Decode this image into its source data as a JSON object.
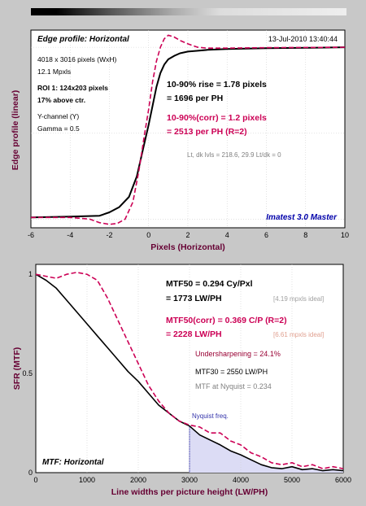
{
  "colors": {
    "measured": "#000000",
    "corrected": "#cc0055",
    "ideal_note": "#a0a0a0",
    "nyquist_fill": "#dcdcf5",
    "ylabel": "#660033",
    "xlabel": "#660033",
    "brand": "#0000aa"
  },
  "top_chart": {
    "title": "Edge profile: Horizontal",
    "timestamp": "13-Jul-2010 13:40:44",
    "info": [
      "4018 x 3016 pixels (WxH)",
      "12.1 Mpxls"
    ],
    "roi": [
      "ROI 1:  124x203 pixels",
      "17% above ctr."
    ],
    "channel": [
      "Y-channel  (Y)",
      "Gamma = 0.5"
    ],
    "rise": [
      "10-90% rise = 1.78 pixels",
      "= 1696 per PH"
    ],
    "rise_corr": [
      "10-90%(corr) = 1.2 pixels",
      "= 2513 per PH   (R=2)"
    ],
    "levels": "Lt, dk lvls = 218.6, 29.9   Lt/dk = 0",
    "brand": "Imatest 3.0 Master",
    "ylabel": "Edge profile (linear)",
    "xlabel": "Pixels (Horizontal)"
  },
  "bottom_chart": {
    "mtf50": [
      "MTF50 = 0.294 Cy/Pxl",
      "= 1773 LW/PH"
    ],
    "mtf50_ideal": "[4.19 mpxls ideal]",
    "mtf50_corr": [
      "MTF50(corr) = 0.369 C/P  (R=2)",
      "= 2228 LW/PH"
    ],
    "mtf50_corr_ideal": "[6.61 mpxls ideal]",
    "undersharpening": "Undersharpening = 24.1%",
    "mtf30": "MTF30 = 2550 LW/PH",
    "mtf_nyquist": "MTF at Nyquist = 0.234",
    "nyquist_label": "Nyquist freq.",
    "title": "MTF: Horizontal",
    "ylabel": "SFR (MTF)",
    "xlabel": "Line widths per picture height (LW/PH)"
  },
  "chart_data": [
    {
      "type": "line",
      "title": "Edge profile: Horizontal",
      "xlabel": "Pixels (Horizontal)",
      "ylabel": "Edge profile (linear)",
      "xlim": [
        -6,
        10
      ],
      "ylim": [
        -0.05,
        1.1
      ],
      "xticks": [
        -6,
        -4,
        -2,
        0,
        2,
        4,
        6,
        8,
        10
      ],
      "grid": true,
      "series": [
        {
          "style": "solid",
          "x": [
            -6,
            -4,
            -2.5,
            -2,
            -1.5,
            -1,
            -0.6,
            -0.3,
            0,
            0.2,
            0.4,
            0.6,
            0.8,
            1,
            1.3,
            1.6,
            2,
            2.5,
            3,
            4,
            6,
            8,
            10
          ],
          "y": [
            0.01,
            0.015,
            0.02,
            0.04,
            0.07,
            0.13,
            0.25,
            0.4,
            0.55,
            0.66,
            0.77,
            0.85,
            0.9,
            0.93,
            0.95,
            0.965,
            0.975,
            0.98,
            0.985,
            0.99,
            0.995,
            0.997,
            1.0
          ]
        },
        {
          "style": "dashed",
          "x": [
            -6,
            -4,
            -3,
            -2.5,
            -2,
            -1.6,
            -1.2,
            -0.8,
            -0.5,
            -0.2,
            0,
            0.2,
            0.4,
            0.6,
            0.8,
            1,
            1.3,
            1.6,
            2,
            2.5,
            3,
            4,
            6,
            10
          ],
          "y": [
            0.01,
            0.01,
            0.0,
            -0.02,
            -0.03,
            -0.025,
            0.0,
            0.1,
            0.28,
            0.5,
            0.64,
            0.8,
            0.92,
            1.0,
            1.05,
            1.07,
            1.06,
            1.04,
            1.02,
            1.0,
            0.995,
            0.995,
            0.998,
            1.0
          ]
        }
      ]
    },
    {
      "type": "line",
      "title": "MTF: Horizontal",
      "xlabel": "Line widths per picture height (LW/PH)",
      "ylabel": "SFR (MTF)",
      "xlim": [
        0,
        6000
      ],
      "ylim": [
        0,
        1.05
      ],
      "xticks": [
        0,
        1000,
        2000,
        3000,
        4000,
        5000,
        6000
      ],
      "nyquist": 3000,
      "grid": true,
      "series": [
        {
          "style": "solid",
          "x": [
            0,
            200,
            400,
            600,
            800,
            1000,
            1200,
            1400,
            1600,
            1800,
            2000,
            2200,
            2400,
            2600,
            2800,
            3000,
            3200,
            3400,
            3600,
            3800,
            4000,
            4200,
            4400,
            4600,
            4800,
            5000,
            5200,
            5400,
            5600,
            5800,
            6000
          ],
          "y": [
            1.0,
            0.97,
            0.93,
            0.87,
            0.81,
            0.75,
            0.69,
            0.63,
            0.57,
            0.51,
            0.46,
            0.4,
            0.34,
            0.3,
            0.26,
            0.235,
            0.19,
            0.165,
            0.14,
            0.11,
            0.09,
            0.065,
            0.04,
            0.025,
            0.02,
            0.03,
            0.015,
            0.02,
            0.01,
            0.015,
            0.01
          ]
        },
        {
          "style": "dashed",
          "x": [
            0,
            200,
            400,
            600,
            800,
            1000,
            1200,
            1400,
            1600,
            1800,
            2000,
            2200,
            2400,
            2600,
            2800,
            3000,
            3200,
            3400,
            3600,
            3800,
            4000,
            4200,
            4400,
            4600,
            4800,
            5000,
            5200,
            5400,
            5600,
            5800,
            6000
          ],
          "y": [
            1.0,
            0.99,
            0.98,
            1.0,
            1.01,
            1.0,
            0.97,
            0.88,
            0.77,
            0.66,
            0.55,
            0.44,
            0.36,
            0.3,
            0.26,
            0.24,
            0.23,
            0.2,
            0.2,
            0.16,
            0.14,
            0.1,
            0.08,
            0.05,
            0.04,
            0.05,
            0.03,
            0.04,
            0.02,
            0.03,
            0.02
          ]
        }
      ]
    }
  ]
}
